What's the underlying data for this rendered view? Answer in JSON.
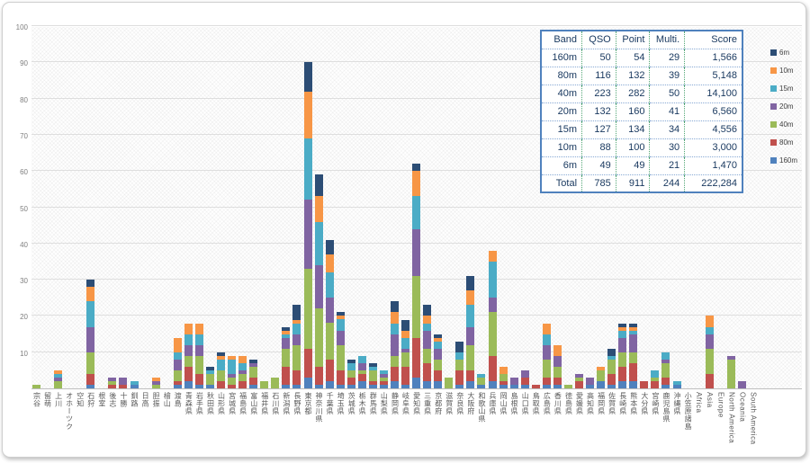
{
  "table": {
    "headers": [
      "Band",
      "QSO",
      "Point",
      "Multi.",
      "Score"
    ],
    "rows": [
      [
        "160m",
        "50",
        "54",
        "29",
        "1,566"
      ],
      [
        "80m",
        "116",
        "132",
        "39",
        "5,148"
      ],
      [
        "40m",
        "223",
        "282",
        "50",
        "14,100"
      ],
      [
        "20m",
        "132",
        "160",
        "41",
        "6,560"
      ],
      [
        "15m",
        "127",
        "134",
        "34",
        "4,556"
      ],
      [
        "10m",
        "88",
        "100",
        "30",
        "3,000"
      ],
      [
        "6m",
        "49",
        "49",
        "21",
        "1,470"
      ],
      [
        "Total",
        "785",
        "911",
        "244",
        "222,284"
      ]
    ],
    "border_color": "#4f81bd",
    "text_color": "#17375e"
  },
  "legend": {
    "position": "right",
    "items": [
      {
        "label": "6m",
        "color": "#2c4d75"
      },
      {
        "label": "10m",
        "color": "#f79646"
      },
      {
        "label": "15m",
        "color": "#4bacc6"
      },
      {
        "label": "20m",
        "color": "#8064a2"
      },
      {
        "label": "40m",
        "color": "#9bbb59"
      },
      {
        "label": "80m",
        "color": "#c0504d"
      },
      {
        "label": "160m",
        "color": "#4f81bd"
      }
    ]
  },
  "chart_data": {
    "type": "bar",
    "stacked": true,
    "title": "",
    "xlabel": "",
    "ylabel": "",
    "ylim": [
      0,
      100
    ],
    "yticks": [
      10,
      20,
      30,
      40,
      50,
      60,
      70,
      80,
      90,
      100
    ],
    "grid": true,
    "stack_order_bottom_to_top": [
      "160m",
      "80m",
      "40m",
      "20m",
      "15m",
      "10m",
      "6m"
    ],
    "colors": {
      "160m": "#4f81bd",
      "80m": "#c0504d",
      "40m": "#9bbb59",
      "20m": "#8064a2",
      "15m": "#4bacc6",
      "10m": "#f79646",
      "6m": "#2c4d75"
    },
    "categories": [
      "宗谷",
      "留萌",
      "上川",
      "オホーツク",
      "空知",
      "石狩",
      "根室",
      "後志",
      "十勝",
      "釧路",
      "日高",
      "胆振",
      "檜山",
      "渡島",
      "青森県",
      "岩手県",
      "秋田県",
      "山形県",
      "宮城県",
      "福島県",
      "富山県",
      "福井県",
      "石川県",
      "新潟県",
      "長野県",
      "東京都",
      "神奈川県",
      "千葉県",
      "埼玉県",
      "茨城県",
      "栃木県",
      "群馬県",
      "山梨県",
      "静岡県",
      "岐阜県",
      "愛知県",
      "三重県",
      "京都府",
      "滋賀県",
      "奈良県",
      "大阪府",
      "和歌山県",
      "兵庫県",
      "岡山県",
      "島根県",
      "山口県",
      "鳥取県",
      "広島県",
      "香川県",
      "徳島県",
      "愛媛県",
      "高知県",
      "福岡県",
      "佐賀県",
      "長崎県",
      "熊本県",
      "大分県",
      "宮崎県",
      "鹿児島県",
      "沖縄県",
      "小笠原諸島",
      "Africa",
      "Asia",
      "Europe",
      "North America",
      "Oceania",
      "South America"
    ],
    "series": [
      {
        "name": "160m",
        "values": [
          0,
          0,
          0,
          0,
          0,
          1,
          0,
          0,
          0,
          1,
          0,
          0,
          0,
          1,
          2,
          1,
          1,
          0,
          0,
          0,
          1,
          0,
          0,
          1,
          1,
          3,
          1,
          2,
          1,
          1,
          2,
          1,
          1,
          2,
          1,
          3,
          2,
          2,
          0,
          1,
          2,
          1,
          2,
          1,
          1,
          1,
          0,
          1,
          1,
          0,
          0,
          1,
          2,
          1,
          2,
          2,
          0,
          0,
          1,
          1,
          0,
          0,
          0,
          0,
          0,
          0,
          0
        ]
      },
      {
        "name": "80m",
        "values": [
          0,
          0,
          0,
          0,
          0,
          3,
          0,
          1,
          1,
          0,
          0,
          0,
          0,
          1,
          4,
          3,
          0,
          2,
          1,
          2,
          2,
          0,
          0,
          5,
          4,
          8,
          5,
          6,
          4,
          2,
          2,
          1,
          1,
          4,
          5,
          11,
          5,
          3,
          0,
          4,
          3,
          0,
          7,
          1,
          0,
          2,
          1,
          2,
          2,
          0,
          2,
          0,
          0,
          3,
          4,
          5,
          2,
          2,
          2,
          0,
          0,
          0,
          4,
          0,
          0,
          0,
          0
        ]
      },
      {
        "name": "40m",
        "values": [
          1,
          0,
          2,
          0,
          0,
          6,
          0,
          1,
          0,
          0,
          0,
          1,
          0,
          3,
          3,
          5,
          3,
          3,
          2,
          2,
          3,
          2,
          3,
          5,
          7,
          22,
          16,
          10,
          7,
          2,
          1,
          3,
          1,
          3,
          4,
          17,
          4,
          3,
          3,
          3,
          7,
          2,
          12,
          2,
          0,
          0,
          0,
          5,
          3,
          1,
          1,
          0,
          3,
          4,
          4,
          3,
          0,
          1,
          4,
          0,
          0,
          0,
          7,
          0,
          8,
          0,
          0
        ]
      },
      {
        "name": "20m",
        "values": [
          0,
          0,
          1,
          0,
          0,
          7,
          0,
          1,
          2,
          0,
          0,
          1,
          0,
          3,
          3,
          3,
          0,
          0,
          1,
          1,
          1,
          0,
          0,
          3,
          3,
          19,
          12,
          7,
          4,
          0,
          2,
          0,
          1,
          6,
          1,
          13,
          5,
          3,
          0,
          0,
          5,
          0,
          4,
          0,
          2,
          2,
          0,
          4,
          3,
          0,
          1,
          2,
          0,
          0,
          4,
          5,
          0,
          0,
          1,
          0,
          0,
          0,
          4,
          0,
          1,
          2,
          0
        ]
      },
      {
        "name": "15m",
        "values": [
          0,
          0,
          1,
          0,
          0,
          7,
          0,
          0,
          0,
          1,
          0,
          0,
          0,
          2,
          3,
          3,
          1,
          3,
          4,
          2,
          0,
          0,
          0,
          1,
          3,
          17,
          12,
          7,
          3,
          2,
          2,
          1,
          1,
          3,
          3,
          9,
          2,
          2,
          0,
          2,
          6,
          1,
          10,
          0,
          0,
          0,
          0,
          3,
          0,
          0,
          0,
          0,
          0,
          1,
          2,
          1,
          0,
          2,
          2,
          1,
          0,
          0,
          2,
          0,
          0,
          0,
          0
        ]
      },
      {
        "name": "10m",
        "values": [
          0,
          0,
          1,
          0,
          0,
          4,
          0,
          0,
          0,
          0,
          0,
          1,
          0,
          4,
          3,
          3,
          0,
          1,
          1,
          2,
          0,
          0,
          0,
          1,
          1,
          13,
          7,
          5,
          1,
          0,
          0,
          0,
          0,
          3,
          2,
          7,
          2,
          1,
          0,
          0,
          4,
          0,
          3,
          2,
          0,
          0,
          0,
          3,
          3,
          0,
          0,
          0,
          1,
          0,
          1,
          1,
          0,
          0,
          0,
          0,
          0,
          0,
          3,
          0,
          0,
          0,
          0
        ]
      },
      {
        "name": "6m",
        "values": [
          0,
          0,
          0,
          0,
          0,
          2,
          0,
          0,
          0,
          0,
          0,
          0,
          0,
          0,
          0,
          0,
          1,
          1,
          0,
          0,
          1,
          0,
          0,
          1,
          4,
          8,
          6,
          4,
          1,
          1,
          0,
          1,
          0,
          3,
          3,
          2,
          3,
          1,
          0,
          3,
          4,
          0,
          0,
          0,
          0,
          0,
          0,
          0,
          0,
          0,
          0,
          0,
          0,
          2,
          1,
          1,
          0,
          0,
          0,
          0,
          0,
          0,
          0,
          0,
          0,
          0,
          0
        ]
      }
    ]
  }
}
